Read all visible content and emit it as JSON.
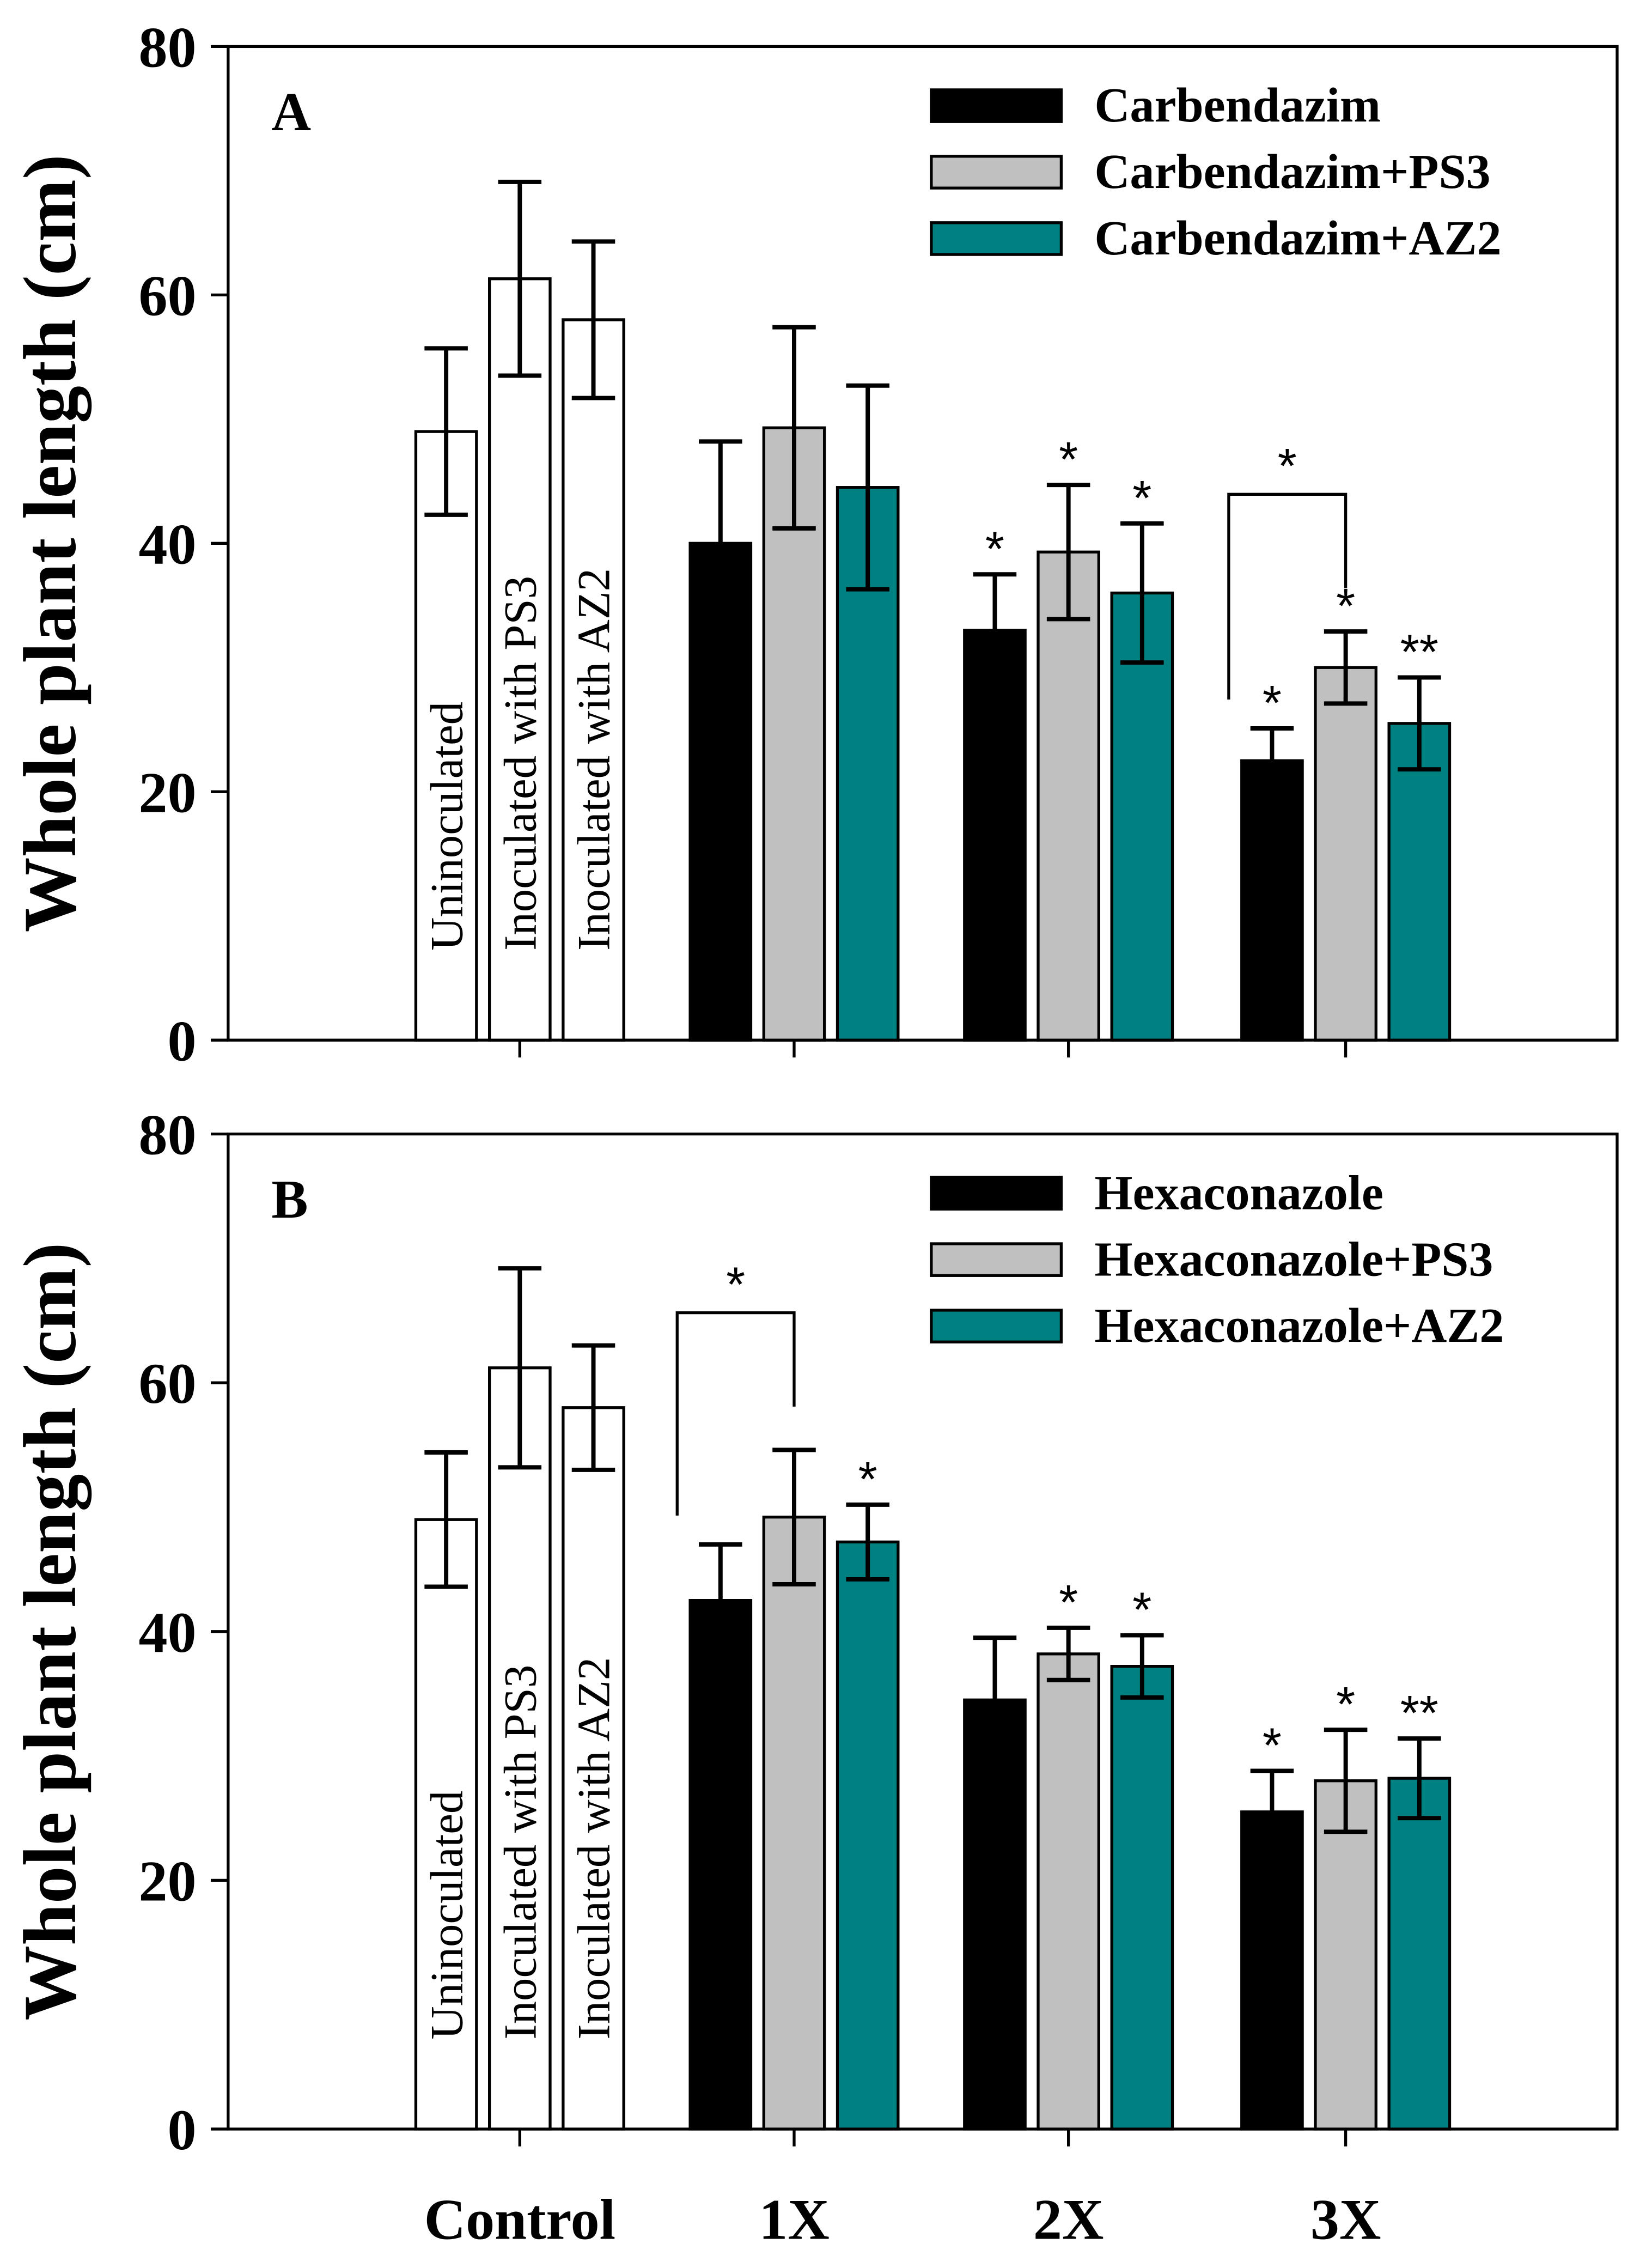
{
  "chart_data": [
    {
      "type": "bar",
      "panel": "A",
      "ylabel": "Whole plant length (cm)",
      "ylim": [
        0,
        80
      ],
      "yticks": [
        "0",
        "20",
        "40",
        "60",
        "80"
      ],
      "categories": [
        "Control",
        "1X",
        "2X",
        "3X"
      ],
      "control_labels": [
        "Uninoculated",
        "Inoculated  with PS3",
        "Inoculated  with AZ2"
      ],
      "legend": [
        "Carbendazim",
        "Carbendazim+PS3",
        "Carbendazim+AZ2"
      ],
      "legend_position": "top-right",
      "colors": [
        "#000000",
        "#c0c0c0",
        "#008080"
      ],
      "series": [
        {
          "name": "Carbendazim",
          "values": [
            49,
            40,
            33,
            22.5
          ],
          "errors": [
            6.7,
            8.2,
            4.5,
            2.6
          ],
          "marks": [
            "",
            "",
            "*",
            "*"
          ]
        },
        {
          "name": "Carbendazim+PS3",
          "values": [
            61.3,
            49.3,
            39.3,
            30
          ],
          "errors": [
            7.8,
            8.1,
            5.4,
            2.9
          ],
          "marks": [
            "",
            "",
            "*",
            "*"
          ]
        },
        {
          "name": "Carbendazim+AZ2",
          "values": [
            58,
            44.5,
            36,
            25.5
          ],
          "errors": [
            6.3,
            8.2,
            5.6,
            3.7
          ],
          "marks": [
            "",
            "",
            "*",
            "**"
          ]
        }
      ],
      "bracket": {
        "category": 3,
        "from": 0,
        "to": 1,
        "mark": "*"
      }
    },
    {
      "type": "bar",
      "panel": "B",
      "ylabel": "Whole plant length (cm)",
      "ylim": [
        0,
        80
      ],
      "yticks": [
        "0",
        "20",
        "40",
        "60",
        "80"
      ],
      "categories": [
        "Control",
        "1X",
        "2X",
        "3X"
      ],
      "control_labels": [
        "Uninoculated",
        "Inoculated  with PS3",
        "Inoculated  with AZ2"
      ],
      "legend": [
        "Hexaconazole",
        "Hexaconazole+PS3",
        "Hexaconazole+AZ2"
      ],
      "legend_position": "top-right",
      "colors": [
        "#000000",
        "#c0c0c0",
        "#008080"
      ],
      "series": [
        {
          "name": "Hexaconazole",
          "values": [
            49,
            42.5,
            34.5,
            25.5
          ],
          "errors": [
            5.4,
            4.5,
            5,
            3.3
          ],
          "marks": [
            "",
            "",
            "",
            "*"
          ]
        },
        {
          "name": "Hexaconazole+PS3",
          "values": [
            61.2,
            49.2,
            38.2,
            28
          ],
          "errors": [
            8,
            5.4,
            2.1,
            4.1
          ],
          "marks": [
            "",
            "",
            "*",
            "*"
          ]
        },
        {
          "name": "Hexaconazole+AZ2",
          "values": [
            58,
            47.2,
            37.2,
            28.2
          ],
          "errors": [
            5,
            3,
            2.5,
            3.2
          ],
          "marks": [
            "",
            "*",
            "*",
            "**"
          ]
        }
      ],
      "bracket": {
        "category": 1,
        "from": 0,
        "to": 1,
        "mark": "*"
      }
    }
  ]
}
